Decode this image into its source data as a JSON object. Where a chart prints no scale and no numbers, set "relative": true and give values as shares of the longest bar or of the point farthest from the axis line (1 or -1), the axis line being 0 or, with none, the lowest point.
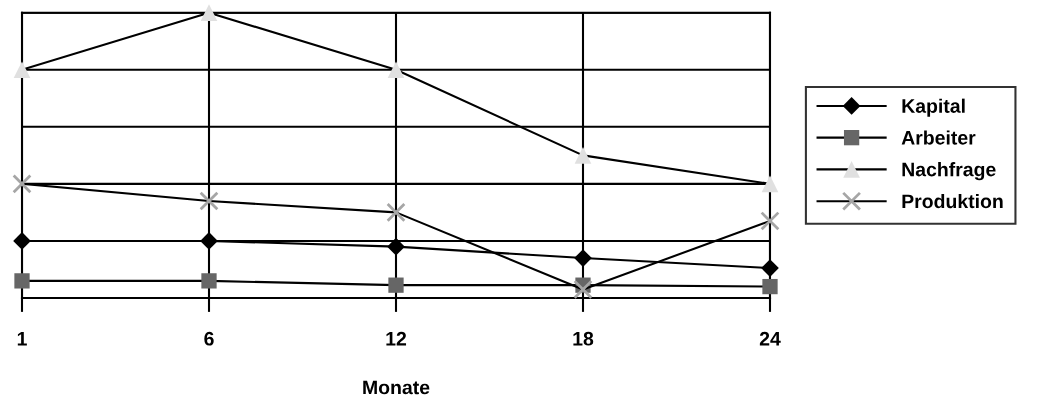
{
  "chart_data": {
    "type": "line",
    "xlabel": "Monate",
    "categories": [
      "1",
      "6",
      "12",
      "18",
      "24"
    ],
    "relative": true,
    "grid": true,
    "legend": "right",
    "line_style": "solid",
    "series": [
      {
        "name": "Kapital",
        "color": "#000000",
        "marker": "diamond",
        "values": [
          0.2,
          0.2,
          0.18,
          0.14,
          0.105
        ]
      },
      {
        "name": "Arbeiter",
        "color": "#666666",
        "marker": "square",
        "values": [
          0.06,
          0.06,
          0.045,
          0.045,
          0.04
        ]
      },
      {
        "name": "Nachfrage",
        "color": "#e0e0e0",
        "marker": "triangle",
        "values": [
          0.8,
          1.0,
          0.8,
          0.5,
          0.4
        ]
      },
      {
        "name": "Produktion",
        "color": "#a6a6a6",
        "marker": "cross",
        "values": [
          0.4,
          0.34,
          0.3,
          0.03,
          0.27
        ]
      }
    ]
  }
}
